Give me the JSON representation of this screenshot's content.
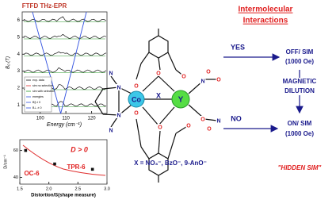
{
  "thz_plot": {
    "title": "FTFD THz-EPR",
    "y_label": "B₀ (T)",
    "x_label": "Energy (cm⁻¹)",
    "xlim": [
      93,
      126
    ],
    "ylim": [
      0.5,
      6.5
    ],
    "xticks": [
      100,
      110,
      120
    ],
    "yticks": [
      1,
      2,
      3,
      4,
      5,
      6
    ],
    "legend": [
      "exp. data",
      "sim no selection",
      "sim with selection",
      "energies",
      "B∥ ≠ 0",
      "B⊥ ≠ 0"
    ]
  },
  "d_plot": {
    "y_label": "D/cm⁻¹",
    "x_label": "Distortion/S(shape measure)",
    "xlim": [
      1.5,
      3.0
    ],
    "ylim": [
      35,
      68
    ],
    "xticks": [
      1.5,
      {
        "value": 2,
        "label": "2.0"
      },
      2.5,
      {
        "value": 3,
        "label": "3.0"
      }
    ],
    "yticks": [
      40,
      60
    ],
    "x": [
      1.6,
      2.1,
      2.75
    ],
    "y": [
      60,
      50,
      46
    ],
    "annotations": [
      "D > 0",
      "OC-6",
      "TPR-6"
    ]
  },
  "molecule": {
    "metals": [
      "Co",
      "Y"
    ],
    "bridge": "X",
    "atoms": [
      "N",
      "N",
      "N",
      "N",
      "O",
      "O",
      "O",
      "O",
      "O",
      "O",
      "N",
      "O",
      "O",
      "O",
      "N",
      "O"
    ],
    "formula": "X = NO₃⁻, BzO⁻, 9-AnO⁻"
  },
  "scheme": {
    "heading": [
      "Intermolecular",
      "Interactions"
    ],
    "yes": "YES",
    "no": "NO",
    "off": [
      "OFF/ SIM",
      "(1000 Oe)"
    ],
    "dilution": [
      "MAGNETIC",
      "DILUTION"
    ],
    "on": [
      "ON/ SIM",
      "(1000 Oe)"
    ],
    "hidden": "\"HIDDEN SIM\""
  }
}
